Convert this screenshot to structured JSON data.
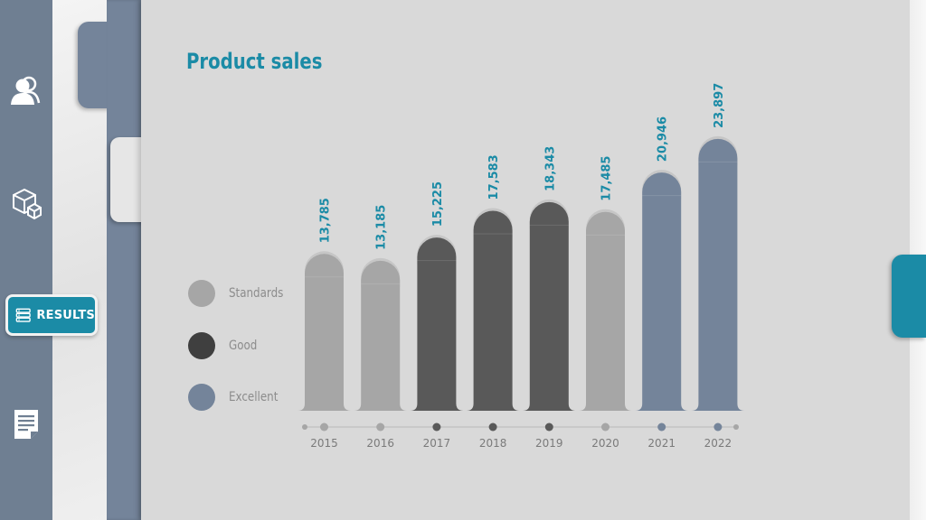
{
  "nav": {
    "items": [
      {
        "name": "users-icon"
      },
      {
        "name": "boxes-icon"
      },
      {
        "name": "results",
        "label": "RESULTS"
      },
      {
        "name": "document-icon"
      }
    ]
  },
  "colors": {
    "accent": "#1b8ba6",
    "standards": "#a6a6a6",
    "good": "#595959",
    "excellent": "#74849a"
  },
  "chart_data": {
    "type": "bar",
    "title": "Product sales",
    "categories": [
      "2015",
      "2016",
      "2017",
      "2018",
      "2019",
      "2020",
      "2021",
      "2022"
    ],
    "values": [
      13785,
      13185,
      15225,
      17583,
      18343,
      17485,
      20946,
      23897
    ],
    "value_labels": [
      "13,785",
      "13,185",
      "15,225",
      "17,583",
      "18,343",
      "17,485",
      "20,946",
      "23,897"
    ],
    "ratings": [
      "Standards",
      "Standards",
      "Good",
      "Good",
      "Good",
      "Standards",
      "Excellent",
      "Excellent"
    ],
    "legend": [
      {
        "label": "Standards",
        "color": "#a6a6a6"
      },
      {
        "label": "Good",
        "color": "#3f3f3f"
      },
      {
        "label": "Excellent",
        "color": "#74849a"
      }
    ],
    "legend_position": "left",
    "ylim": [
      0,
      25000
    ],
    "grid": false
  }
}
